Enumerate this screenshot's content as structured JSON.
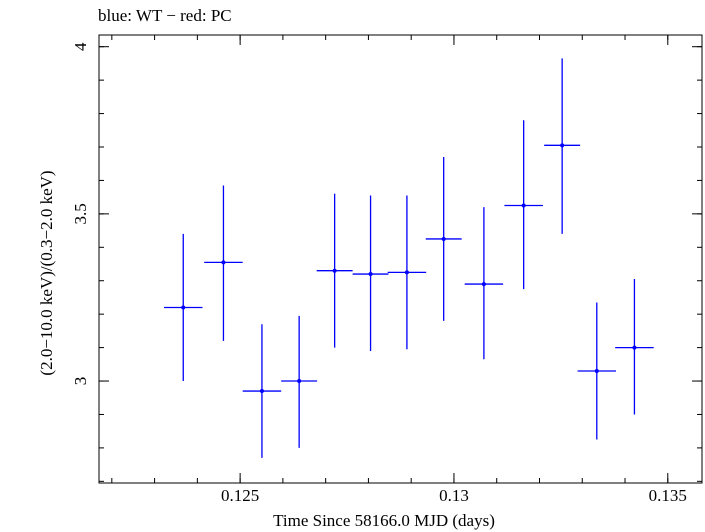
{
  "chart_data": {
    "type": "scatter",
    "title": "blue: WT − red: PC",
    "xlabel": "Time Since 58166.0 MJD (days)",
    "ylabel": "(2.0−10.0 keV)/(0.3−2.0 keV)",
    "xlim": [
      0.1217,
      0.1358
    ],
    "ylim": [
      2.695,
      4.035
    ],
    "xticks": [
      {
        "value": 0.125,
        "label": "0.125"
      },
      {
        "value": 0.13,
        "label": "0.13"
      },
      {
        "value": 0.135,
        "label": "0.135"
      }
    ],
    "yticks": [
      {
        "value": 3,
        "label": "3"
      },
      {
        "value": 3.5,
        "label": "3.5"
      },
      {
        "value": 4,
        "label": "4"
      }
    ],
    "x_minor_step": 0.001,
    "y_minor_step": 0.1,
    "grid": false,
    "series": [
      {
        "color": "#0000ff",
        "points": [
          {
            "x": 0.12367,
            "y": 3.22,
            "xerr": 0.00045,
            "ylo": 3.0,
            "yhi": 3.44
          },
          {
            "x": 0.12461,
            "y": 3.355,
            "xerr": 0.00045,
            "ylo": 3.12,
            "yhi": 3.585
          },
          {
            "x": 0.12551,
            "y": 2.97,
            "xerr": 0.00045,
            "ylo": 2.77,
            "yhi": 3.17
          },
          {
            "x": 0.12638,
            "y": 3.0,
            "xerr": 0.00042,
            "ylo": 2.8,
            "yhi": 3.195
          },
          {
            "x": 0.12721,
            "y": 3.33,
            "xerr": 0.00042,
            "ylo": 3.1,
            "yhi": 3.56
          },
          {
            "x": 0.12805,
            "y": 3.32,
            "xerr": 0.00042,
            "ylo": 3.09,
            "yhi": 3.555
          },
          {
            "x": 0.1289,
            "y": 3.325,
            "xerr": 0.00045,
            "ylo": 3.095,
            "yhi": 3.555
          },
          {
            "x": 0.12976,
            "y": 3.425,
            "xerr": 0.00042,
            "ylo": 3.18,
            "yhi": 3.67
          },
          {
            "x": 0.1307,
            "y": 3.29,
            "xerr": 0.00045,
            "ylo": 3.065,
            "yhi": 3.52
          },
          {
            "x": 0.13163,
            "y": 3.525,
            "xerr": 0.00045,
            "ylo": 3.275,
            "yhi": 3.78
          },
          {
            "x": 0.13253,
            "y": 3.705,
            "xerr": 0.00042,
            "ylo": 3.44,
            "yhi": 3.965
          },
          {
            "x": 0.13334,
            "y": 3.03,
            "xerr": 0.00045,
            "ylo": 2.825,
            "yhi": 3.235
          },
          {
            "x": 0.13422,
            "y": 3.1,
            "xerr": 0.00045,
            "ylo": 2.9,
            "yhi": 3.305
          }
        ]
      }
    ]
  }
}
